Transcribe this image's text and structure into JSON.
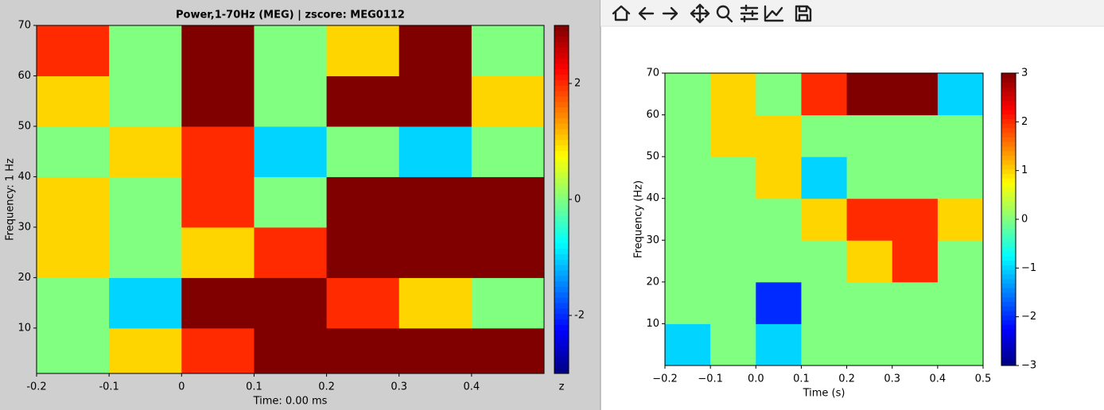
{
  "chart_data": [
    {
      "type": "heatmap",
      "title": "Power,1-70Hz (MEG) | zscore: MEG0112",
      "xlabel": "Time: 0.00 ms",
      "ylabel": "Frequency: 1 Hz",
      "colorbar_label": "z",
      "x": [
        -0.15,
        -0.05,
        0.05,
        0.15,
        0.25,
        0.35,
        0.45
      ],
      "y": [
        5,
        15,
        25,
        35,
        45,
        55,
        65
      ],
      "z": [
        [
          0,
          1,
          2,
          3,
          3,
          3,
          3
        ],
        [
          0,
          -1,
          3,
          3,
          2,
          1,
          0
        ],
        [
          1,
          0,
          1,
          2,
          3,
          3,
          3
        ],
        [
          1,
          0,
          2,
          0,
          3,
          3,
          3
        ],
        [
          0,
          1,
          2,
          -1,
          0,
          -1,
          0
        ],
        [
          1,
          0,
          3,
          0,
          3,
          3,
          1
        ],
        [
          2,
          0,
          3,
          0,
          1,
          3,
          0
        ]
      ],
      "xlim": [
        -0.2,
        0.5
      ],
      "ylim": [
        1,
        70
      ],
      "xticks": [
        -0.2,
        -0.1,
        0,
        0.1,
        0.2,
        0.3,
        0.4
      ],
      "yticks": [
        10,
        20,
        30,
        40,
        50,
        60,
        70
      ],
      "clim": [
        -3,
        3
      ],
      "cticks": [
        -2,
        0,
        2
      ],
      "colormap": "jet"
    },
    {
      "type": "heatmap",
      "xlabel": "Time (s)",
      "ylabel": "Frequency (Hz)",
      "x": [
        -0.15,
        -0.05,
        0.05,
        0.15,
        0.25,
        0.35,
        0.45
      ],
      "y": [
        5,
        15,
        25,
        35,
        45,
        55,
        65
      ],
      "z": [
        [
          -1,
          0,
          -1,
          0,
          0,
          0,
          0
        ],
        [
          0,
          0,
          -2,
          0,
          0,
          0,
          0
        ],
        [
          0,
          0,
          0,
          0,
          1,
          2,
          0
        ],
        [
          0,
          0,
          0,
          1,
          2,
          2,
          1
        ],
        [
          0,
          0,
          1,
          -1,
          0,
          0,
          0
        ],
        [
          0,
          1,
          1,
          0,
          0,
          0,
          0
        ],
        [
          0,
          1,
          0,
          2,
          3,
          3,
          -1
        ]
      ],
      "xlim": [
        -0.2,
        0.5
      ],
      "ylim": [
        0,
        70
      ],
      "xticks": [
        {
          "value": -0.2,
          "label": "−0.2"
        },
        {
          "value": -0.1,
          "label": "−0.1"
        },
        {
          "value": 0,
          "label": "0.0"
        },
        0.1,
        0.2,
        0.3,
        0.4,
        0.5
      ],
      "yticks": [
        10,
        20,
        30,
        40,
        50,
        60,
        70
      ],
      "clim": [
        -3,
        3
      ],
      "cticks": [
        {
          "value": -3,
          "label": "−3"
        },
        {
          "value": -2,
          "label": "−2"
        },
        {
          "value": -1,
          "label": "−1"
        },
        0,
        1,
        2,
        3
      ],
      "colormap": "jet"
    }
  ]
}
